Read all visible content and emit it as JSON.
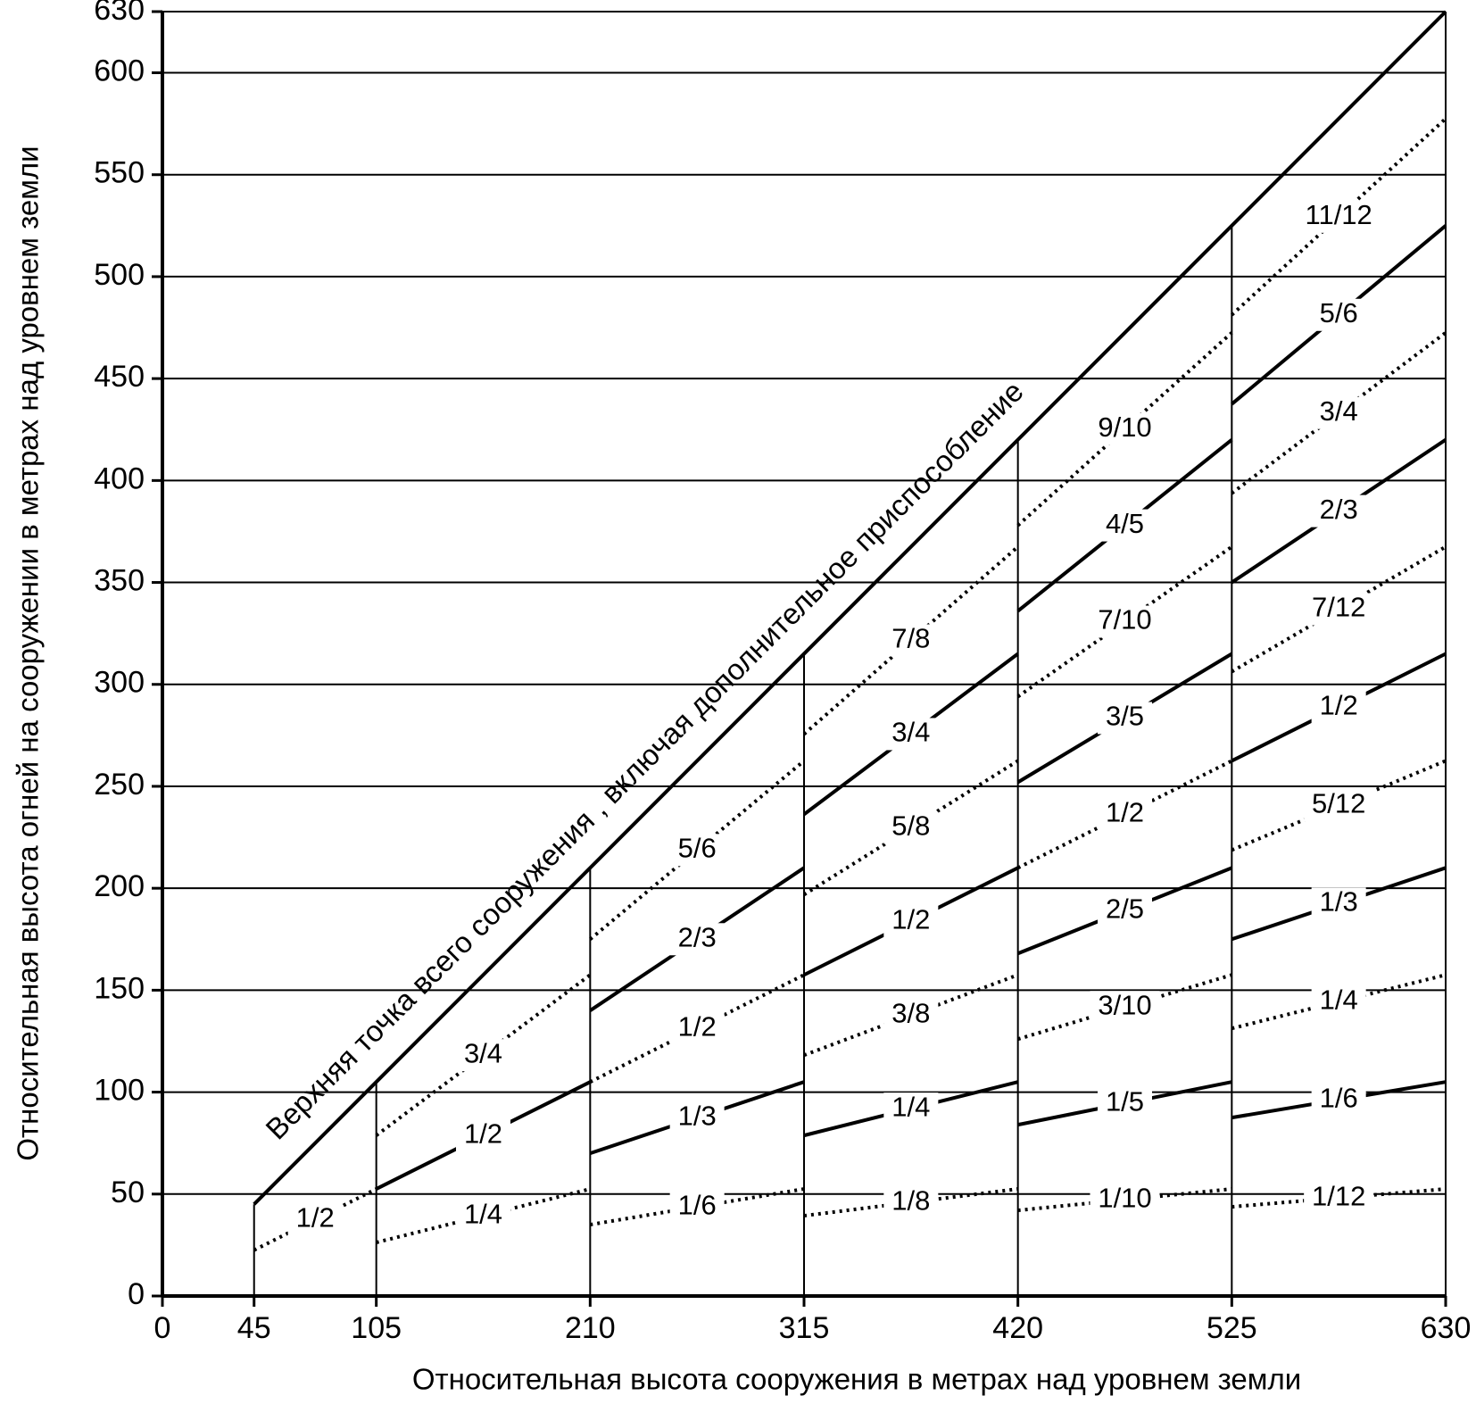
{
  "chart_data": {
    "type": "line",
    "xlabel": "Относительная высота сооружения в метрах над уровнем земли",
    "ylabel": "Относительная высота огней на сооружении в метрах над уровнем земли",
    "xlim": [
      0,
      630
    ],
    "ylim": [
      0,
      630
    ],
    "xticks": [
      0,
      45,
      105,
      210,
      315,
      420,
      525,
      630
    ],
    "yticks": [
      0,
      50,
      100,
      150,
      200,
      250,
      300,
      350,
      400,
      450,
      500,
      550,
      600,
      630
    ],
    "grid": true,
    "color": "#000000",
    "series": [
      {
        "name": "Верхняя точка всего сооружения , включая дополнительное приспособление",
        "style": "solid",
        "x": [
          45,
          630
        ],
        "values": [
          45,
          630
        ]
      },
      {
        "name": "1/2",
        "style": "dotted",
        "x": [
          45,
          105
        ],
        "values": [
          22.5,
          52.5
        ]
      },
      {
        "name": "1/4",
        "style": "dotted",
        "x": [
          105,
          210
        ],
        "values": [
          26.25,
          52.5
        ]
      },
      {
        "name": "1/2",
        "style": "solid",
        "x": [
          105,
          210
        ],
        "values": [
          52.5,
          105
        ]
      },
      {
        "name": "3/4",
        "style": "dotted",
        "x": [
          105,
          210
        ],
        "values": [
          78.75,
          157.5
        ]
      },
      {
        "name": "1/6",
        "style": "dotted",
        "x": [
          210,
          315
        ],
        "values": [
          35,
          52.5
        ]
      },
      {
        "name": "1/3",
        "style": "solid",
        "x": [
          210,
          315
        ],
        "values": [
          70,
          105
        ]
      },
      {
        "name": "1/2",
        "style": "dotted",
        "x": [
          210,
          315
        ],
        "values": [
          105,
          157.5
        ]
      },
      {
        "name": "2/3",
        "style": "solid",
        "x": [
          210,
          315
        ],
        "values": [
          140,
          210
        ]
      },
      {
        "name": "5/6",
        "style": "dotted",
        "x": [
          210,
          315
        ],
        "values": [
          175,
          262.5
        ]
      },
      {
        "name": "1/8",
        "style": "dotted",
        "x": [
          315,
          420
        ],
        "values": [
          39.375,
          52.5
        ]
      },
      {
        "name": "1/4",
        "style": "solid",
        "x": [
          315,
          420
        ],
        "values": [
          78.75,
          105
        ]
      },
      {
        "name": "3/8",
        "style": "dotted",
        "x": [
          315,
          420
        ],
        "values": [
          118.125,
          157.5
        ]
      },
      {
        "name": "1/2",
        "style": "solid",
        "x": [
          315,
          420
        ],
        "values": [
          157.5,
          210
        ]
      },
      {
        "name": "5/8",
        "style": "dotted",
        "x": [
          315,
          420
        ],
        "values": [
          196.875,
          262.5
        ]
      },
      {
        "name": "3/4",
        "style": "solid",
        "x": [
          315,
          420
        ],
        "values": [
          236.25,
          315
        ]
      },
      {
        "name": "7/8",
        "style": "dotted",
        "x": [
          315,
          420
        ],
        "values": [
          275.625,
          367.5
        ]
      },
      {
        "name": "1/10",
        "style": "dotted",
        "x": [
          420,
          525
        ],
        "values": [
          42,
          52.5
        ]
      },
      {
        "name": "1/5",
        "style": "solid",
        "x": [
          420,
          525
        ],
        "values": [
          84,
          105
        ]
      },
      {
        "name": "3/10",
        "style": "dotted",
        "x": [
          420,
          525
        ],
        "values": [
          126,
          157.5
        ]
      },
      {
        "name": "2/5",
        "style": "solid",
        "x": [
          420,
          525
        ],
        "values": [
          168,
          210
        ]
      },
      {
        "name": "1/2",
        "style": "dotted",
        "x": [
          420,
          525
        ],
        "values": [
          210,
          262.5
        ]
      },
      {
        "name": "3/5",
        "style": "solid",
        "x": [
          420,
          525
        ],
        "values": [
          252,
          315
        ]
      },
      {
        "name": "7/10",
        "style": "dotted",
        "x": [
          420,
          525
        ],
        "values": [
          294,
          367.5
        ]
      },
      {
        "name": "4/5",
        "style": "solid",
        "x": [
          420,
          525
        ],
        "values": [
          336,
          420
        ]
      },
      {
        "name": "9/10",
        "style": "dotted",
        "x": [
          420,
          525
        ],
        "values": [
          378,
          472.5
        ]
      },
      {
        "name": "1/12",
        "style": "dotted",
        "x": [
          525,
          630
        ],
        "values": [
          43.75,
          52.5
        ]
      },
      {
        "name": "1/6",
        "style": "solid",
        "x": [
          525,
          630
        ],
        "values": [
          87.5,
          105
        ]
      },
      {
        "name": "1/4",
        "style": "dotted",
        "x": [
          525,
          630
        ],
        "values": [
          131.25,
          157.5
        ]
      },
      {
        "name": "1/3",
        "style": "solid",
        "x": [
          525,
          630
        ],
        "values": [
          175,
          210
        ]
      },
      {
        "name": "5/12",
        "style": "dotted",
        "x": [
          525,
          630
        ],
        "values": [
          218.75,
          262.5
        ]
      },
      {
        "name": "1/2",
        "style": "solid",
        "x": [
          525,
          630
        ],
        "values": [
          262.5,
          315
        ]
      },
      {
        "name": "7/12",
        "style": "dotted",
        "x": [
          525,
          630
        ],
        "values": [
          306.25,
          367.5
        ]
      },
      {
        "name": "2/3",
        "style": "solid",
        "x": [
          525,
          630
        ],
        "values": [
          350,
          420
        ]
      },
      {
        "name": "3/4",
        "style": "dotted",
        "x": [
          525,
          630
        ],
        "values": [
          393.75,
          472.5
        ]
      },
      {
        "name": "5/6",
        "style": "solid",
        "x": [
          525,
          630
        ],
        "values": [
          437.5,
          525
        ]
      },
      {
        "name": "11/12",
        "style": "dotted",
        "x": [
          525,
          630
        ],
        "values": [
          481.25,
          577.5
        ]
      }
    ]
  }
}
